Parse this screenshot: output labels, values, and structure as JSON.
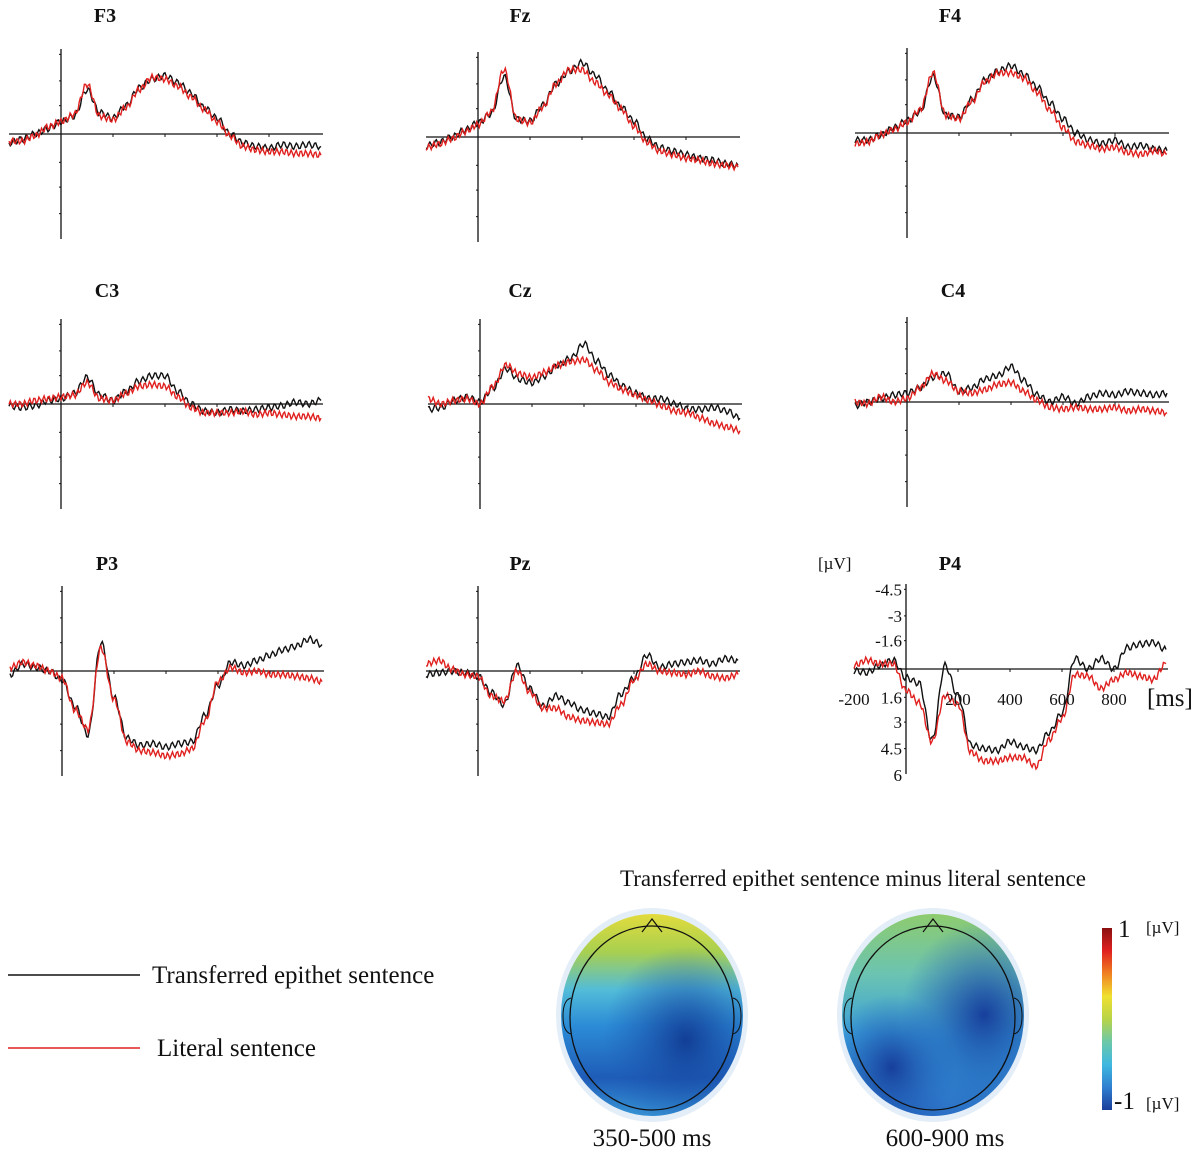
{
  "chart_data": [
    {
      "type": "line",
      "panels_note_free": true,
      "x_unit": "[ms]",
      "y_unit": "[µV]",
      "y_inverted": true,
      "xlim": [
        -200,
        1000
      ],
      "ylim": [
        -4.5,
        6
      ],
      "x_ticks": [
        "-200",
        "200",
        "400",
        "600",
        "800"
      ],
      "y_ticks": [
        "-4.5",
        "-3",
        "-1.6",
        "1.6",
        "3",
        "4.5",
        "6"
      ],
      "x": [
        -200,
        -150,
        -100,
        -50,
        0,
        50,
        100,
        150,
        200,
        250,
        300,
        350,
        400,
        450,
        500,
        550,
        600,
        650,
        700,
        750,
        800,
        850,
        900,
        950,
        1000
      ],
      "series_names": [
        "Transferred epithet sentence",
        "Literal sentence"
      ],
      "series_colors": [
        "#111111",
        "#e0201e"
      ],
      "panels": [
        {
          "title": "F3",
          "series": [
            [
              0.5,
              0.3,
              0,
              -0.3,
              -0.7,
              -1.0,
              -2.5,
              -1.2,
              -0.9,
              -1.6,
              -2.6,
              -3.1,
              -3.3,
              -2.9,
              -2.3,
              -1.5,
              -0.9,
              0,
              0.5,
              0.7,
              0.8,
              0.6,
              0.7,
              0.6,
              0.7
            ],
            [
              0.4,
              0.4,
              0.1,
              -0.4,
              -0.7,
              -1.1,
              -2.8,
              -1.0,
              -0.8,
              -1.5,
              -2.5,
              -3.2,
              -3.1,
              -2.7,
              -2.1,
              -1.4,
              -0.7,
              0.1,
              0.7,
              0.9,
              1.0,
              1.0,
              1.1,
              1.1,
              1.2
            ]
          ]
        },
        {
          "title": "Fz",
          "series": [
            [
              0.5,
              0.3,
              0,
              -0.4,
              -0.8,
              -1.3,
              -3.4,
              -1.0,
              -0.9,
              -1.8,
              -3.0,
              -3.7,
              -4.2,
              -3.5,
              -2.6,
              -1.7,
              -0.9,
              0.1,
              0.6,
              0.8,
              1.0,
              1.2,
              1.3,
              1.5,
              1.6
            ],
            [
              0.6,
              0.4,
              0.1,
              -0.3,
              -0.7,
              -1.4,
              -3.8,
              -1.0,
              -0.8,
              -1.7,
              -3.0,
              -3.8,
              -3.8,
              -3.1,
              -2.4,
              -1.6,
              -0.6,
              0.3,
              0.8,
              1.0,
              1.2,
              1.3,
              1.5,
              1.6,
              1.7
            ]
          ]
        },
        {
          "title": "F4",
          "series": [
            [
              0.4,
              0.4,
              0.1,
              -0.3,
              -0.7,
              -1.2,
              -3.2,
              -1.0,
              -0.9,
              -1.9,
              -3.0,
              -3.5,
              -3.8,
              -3.3,
              -2.6,
              -1.7,
              -0.8,
              0,
              0.4,
              0.6,
              0.4,
              0.8,
              0.7,
              0.9,
              1.0
            ],
            [
              0.6,
              0.5,
              0.1,
              -0.2,
              -0.6,
              -1.3,
              -3.4,
              -1.0,
              -0.8,
              -1.8,
              -2.9,
              -3.4,
              -3.4,
              -3.1,
              -2.3,
              -1.3,
              -0.3,
              0.5,
              0.7,
              0.9,
              0.8,
              1.1,
              1.2,
              1.0,
              1.2
            ]
          ]
        },
        {
          "title": "C3",
          "series": [
            [
              0.1,
              0.2,
              0.1,
              -0.2,
              -0.3,
              -0.6,
              -1.5,
              -0.5,
              -0.2,
              -0.7,
              -1.3,
              -1.6,
              -1.6,
              -0.7,
              0,
              0.4,
              0.5,
              0.3,
              0.4,
              0.3,
              0.2,
              0.1,
              -0.1,
              0,
              -0.2
            ],
            [
              0,
              0,
              -0.2,
              -0.3,
              -0.4,
              -0.5,
              -1.2,
              -0.3,
              -0.2,
              -0.6,
              -1.0,
              -1.1,
              -1.0,
              -0.4,
              0.2,
              0.5,
              0.5,
              0.5,
              0.4,
              0.6,
              0.5,
              0.6,
              0.7,
              0.7,
              0.8
            ]
          ]
        },
        {
          "title": "Cz",
          "series": [
            [
              0.3,
              0.2,
              -0.2,
              -0.4,
              -0.1,
              -0.9,
              -2.0,
              -1.4,
              -1.2,
              -1.6,
              -2.2,
              -2.6,
              -3.4,
              -2.4,
              -1.6,
              -1.0,
              -0.6,
              -0.3,
              -0.3,
              0,
              0.3,
              0.3,
              0.2,
              0.4,
              0.8
            ],
            [
              -0.3,
              0,
              -0.2,
              -0.3,
              0,
              -1.0,
              -2.2,
              -1.7,
              -1.5,
              -1.8,
              -2.2,
              -2.4,
              -2.5,
              -1.9,
              -1.2,
              -0.8,
              -0.5,
              -0.2,
              0.1,
              0.4,
              0.5,
              0.8,
              1.1,
              1.3,
              1.5
            ]
          ]
        },
        {
          "title": "C4",
          "series": [
            [
              0.2,
              0,
              -0.2,
              -0.4,
              -0.5,
              -0.8,
              -1.4,
              -1.6,
              -0.6,
              -0.8,
              -1.3,
              -1.5,
              -2.0,
              -1.2,
              -0.4,
              0,
              -0.3,
              0.1,
              -0.3,
              -0.5,
              -0.4,
              -0.6,
              -0.5,
              -0.4,
              -0.5
            ],
            [
              0,
              0.1,
              -0.3,
              0,
              -0.2,
              -0.8,
              -1.6,
              -1.2,
              -0.6,
              -0.5,
              -0.7,
              -1.0,
              -1.1,
              -0.6,
              -0.1,
              0.3,
              0.4,
              0.3,
              0.4,
              0.4,
              0.3,
              0.5,
              0.4,
              0.5,
              0.6
            ]
          ]
        },
        {
          "title": "P3",
          "series": [
            [
              0.2,
              -0.4,
              -0.2,
              0,
              0.5,
              2.0,
              3.6,
              -1.6,
              1.5,
              3.8,
              4.2,
              4.1,
              4.3,
              4.1,
              4.0,
              2.5,
              0.8,
              -0.5,
              -0.3,
              -0.6,
              -0.9,
              -1.2,
              -1.4,
              -1.8,
              -1.5
            ],
            [
              -0.2,
              -0.5,
              -0.3,
              0,
              0.4,
              2.2,
              3.3,
              -1.3,
              1.6,
              4.0,
              4.5,
              4.6,
              4.8,
              4.7,
              4.4,
              2.8,
              0.6,
              -0.2,
              0.1,
              0,
              0.2,
              0.2,
              0.3,
              0.4,
              0.6
            ]
          ]
        },
        {
          "title": "Pz",
          "series": [
            [
              0.2,
              0.1,
              0,
              0.1,
              0.3,
              1.2,
              1.9,
              -0.3,
              1.0,
              2.0,
              1.4,
              1.8,
              2.2,
              2.4,
              2.6,
              1.3,
              0.4,
              -0.9,
              -0.2,
              -0.4,
              -0.5,
              -0.6,
              -0.4,
              -0.7,
              -0.6
            ],
            [
              -0.4,
              -0.6,
              -0.1,
              0.2,
              0.3,
              1.4,
              1.7,
              0,
              1.2,
              2.1,
              2.1,
              2.6,
              2.8,
              2.9,
              3.0,
              1.9,
              0.5,
              -0.4,
              0,
              0.1,
              0.2,
              0,
              0.3,
              0.4,
              0.2
            ]
          ]
        },
        {
          "title": "P4",
          "series": [
            [
              0.1,
              0.2,
              -0.2,
              -0.5,
              0.5,
              0.8,
              4.0,
              -0.2,
              1.5,
              4.3,
              4.5,
              4.6,
              4.1,
              4.4,
              4.6,
              3.6,
              2.5,
              -0.6,
              0,
              -0.6,
              0,
              -1.2,
              -1.4,
              -1.5,
              -1.1
            ],
            [
              -0.2,
              -0.5,
              -0.3,
              -0.3,
              1.2,
              1.9,
              4.1,
              1.5,
              2.0,
              4.7,
              5.2,
              5.2,
              5.0,
              5.0,
              5.5,
              4.0,
              2.8,
              0.3,
              0.4,
              1.1,
              0.6,
              0.2,
              0.4,
              0.6,
              -0.3
            ]
          ]
        }
      ]
    },
    {
      "type": "heatmap",
      "title": "Transferred epithet sentence minus literal sentence",
      "maps": [
        {
          "label": "350-500 ms"
        },
        {
          "label": "600-900 ms"
        }
      ],
      "colorbar": {
        "max_label": "1",
        "min_label": "-1",
        "unit": "[µV]",
        "range": [
          -1,
          1
        ],
        "colors": [
          "#1a3f9a",
          "#2f7fd0",
          "#3fb8e0",
          "#6cc8a8",
          "#b8d448",
          "#f0e030",
          "#f08020",
          "#e02020",
          "#8a1010"
        ]
      }
    }
  ],
  "axis_labels": {
    "y_unit": "[µV]",
    "x_unit": "[ms]"
  },
  "legend": [
    {
      "label": "Transferred epithet sentence",
      "color": "#111111"
    },
    {
      "label": "Literal sentence",
      "color": "#e0201e"
    }
  ]
}
